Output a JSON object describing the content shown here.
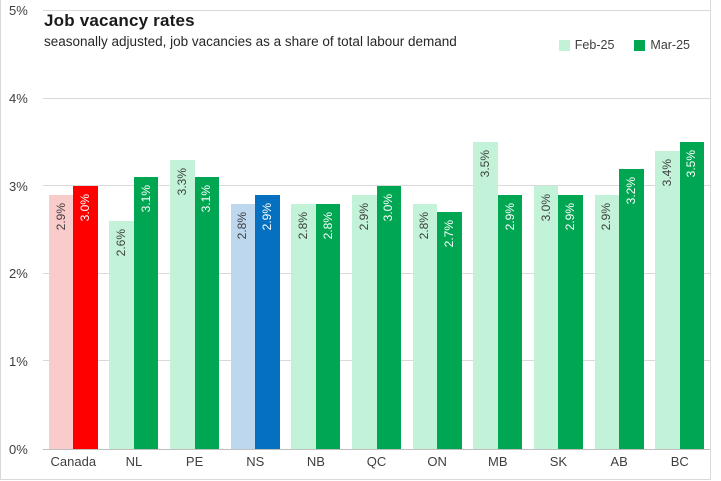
{
  "chart_data": {
    "type": "bar",
    "title": "Job vacancy rates",
    "subtitle": "seasonally adjusted, job vacancies as a share of total labour demand",
    "categories": [
      "Canada",
      "NL",
      "PE",
      "NS",
      "NB",
      "QC",
      "ON",
      "MB",
      "SK",
      "AB",
      "BC"
    ],
    "series": [
      {
        "name": "Feb-25",
        "values": [
          2.9,
          2.6,
          3.3,
          2.8,
          2.8,
          2.9,
          2.8,
          3.5,
          3.0,
          2.9,
          3.4
        ]
      },
      {
        "name": "Mar-25",
        "values": [
          3.0,
          3.1,
          3.1,
          2.9,
          2.8,
          3.0,
          2.7,
          2.9,
          2.9,
          3.2,
          3.5
        ]
      }
    ],
    "bar_labels": {
      "Feb-25": [
        "2.9%",
        "2.6%",
        "3.3%",
        "2.8%",
        "2.8%",
        "2.9%",
        "2.8%",
        "3.5%",
        "3.0%",
        "2.9%",
        "3.4%"
      ],
      "Mar-25": [
        "3.0%",
        "3.1%",
        "3.1%",
        "2.9%",
        "2.8%",
        "3.0%",
        "2.7%",
        "2.9%",
        "2.9%",
        "3.2%",
        "3.5%"
      ]
    },
    "ylim": [
      0,
      5
    ],
    "yticks": [
      "0%",
      "1%",
      "2%",
      "3%",
      "4%",
      "5%"
    ],
    "grid": "horizontal",
    "legend_position": "top-right",
    "colors": {
      "default_series": [
        {
          "fill": "#C2F3D9",
          "label_text": "#3F3F3F"
        },
        {
          "fill": "#00A651",
          "label_text": "#FFFFFF"
        }
      ],
      "category_overrides": {
        "Canada": [
          {
            "fill": "#F9CBCB",
            "label_text": "#3F3F3F"
          },
          {
            "fill": "#FF0000",
            "label_text": "#FFFFFF"
          }
        ],
        "NS": [
          {
            "fill": "#BDD7EE",
            "label_text": "#3F3F3F"
          },
          {
            "fill": "#0570C0",
            "label_text": "#FFFFFF"
          }
        ]
      },
      "gridline": "#D9D9D9",
      "axis_line": "#BFBFBF"
    }
  }
}
